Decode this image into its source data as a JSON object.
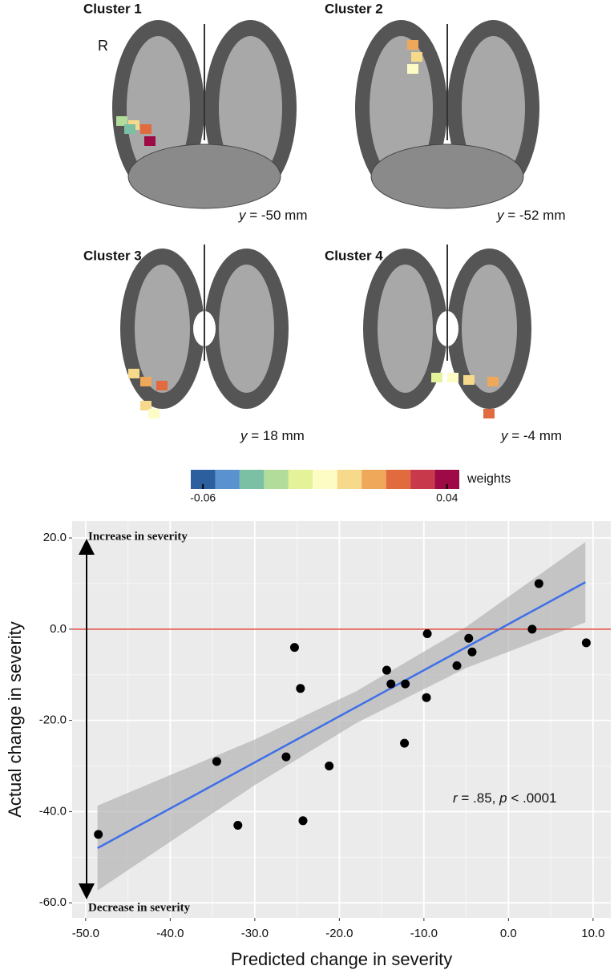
{
  "panels": [
    {
      "title": "Cluster 1",
      "side_label": "R",
      "coord_var": "y",
      "coord": " = -50 mm"
    },
    {
      "title": "Cluster 2",
      "coord_var": "y",
      "coord": " = -52 mm"
    },
    {
      "title": "Cluster 3",
      "coord_var": "y",
      "coord": " = 18 mm"
    },
    {
      "title": "Cluster 4",
      "coord_var": "y",
      "coord": " = -4 mm"
    }
  ],
  "colorbar": {
    "label": "weights",
    "colors": [
      "#2c5f9e",
      "#5a92cf",
      "#7bbfa5",
      "#b2dc9a",
      "#e4f29a",
      "#fdfcc4",
      "#f6d98a",
      "#efa85a",
      "#e16a3f",
      "#c9394c",
      "#9e0a45"
    ],
    "ticks": [
      {
        "value": -0.06,
        "label": "-0.06"
      },
      {
        "value": 0.04,
        "label": "0.04"
      }
    ]
  },
  "chart_data": {
    "type": "scatter",
    "x_label": "Predicted change in severity",
    "y_label": "Actual change in severity",
    "annotations": {
      "top": "Increase in severity",
      "bottom": "Decrease in severity",
      "stat": [
        "r",
        " = .85, ",
        "p",
        " < .0001"
      ]
    },
    "xlim": [
      -51.6,
      12.1
    ],
    "ylim": [
      -63.3,
      23.7
    ],
    "xticks": [
      {
        "value": -50,
        "label": "-50.0"
      },
      {
        "value": -40,
        "label": "-40.0"
      },
      {
        "value": -30,
        "label": "-30.0"
      },
      {
        "value": -20,
        "label": "-20.0"
      },
      {
        "value": -10,
        "label": "-10.0"
      },
      {
        "value": 0,
        "label": "0.0"
      },
      {
        "value": 10,
        "label": "10.0"
      }
    ],
    "yticks": [
      {
        "value": -60,
        "label": "-60.0"
      },
      {
        "value": -40,
        "label": "-40.0"
      },
      {
        "value": -20,
        "label": "-20.0"
      },
      {
        "value": 0,
        "label": "0.0"
      },
      {
        "value": 20,
        "label": "20.0"
      }
    ],
    "grid": true,
    "hline": {
      "value": 0,
      "color": "#e0453a"
    },
    "series": [
      {
        "color": "#000000",
        "x": [
          -48.5,
          -34.5,
          -32.0,
          -26.3,
          -25.3,
          -24.6,
          -24.3,
          -21.2,
          -14.4,
          -13.9,
          -12.2,
          -12.3,
          -9.6,
          -9.7,
          -6.1,
          -4.7,
          -4.3,
          2.8,
          3.6,
          9.2
        ],
        "values": [
          -45,
          -29,
          -43,
          -28,
          -4,
          -13,
          -42,
          -30,
          -9,
          -12,
          -12,
          -25,
          -1,
          -15,
          -8,
          -2,
          -5,
          0,
          10,
          -3
        ]
      }
    ],
    "fit": {
      "color": "#3f6fe8",
      "x": [
        -48.6,
        9.1
      ],
      "values": [
        -48.0,
        10.3
      ]
    },
    "band": {
      "color": "#b3b3b3",
      "x": [
        -48.6,
        -30,
        -18,
        -5,
        9.1
      ],
      "lower": [
        -57.3,
        -34.2,
        -20.6,
        -8.5,
        1.5
      ],
      "upper": [
        -38.7,
        -24.2,
        -13.6,
        0.5,
        19.1
      ]
    }
  }
}
